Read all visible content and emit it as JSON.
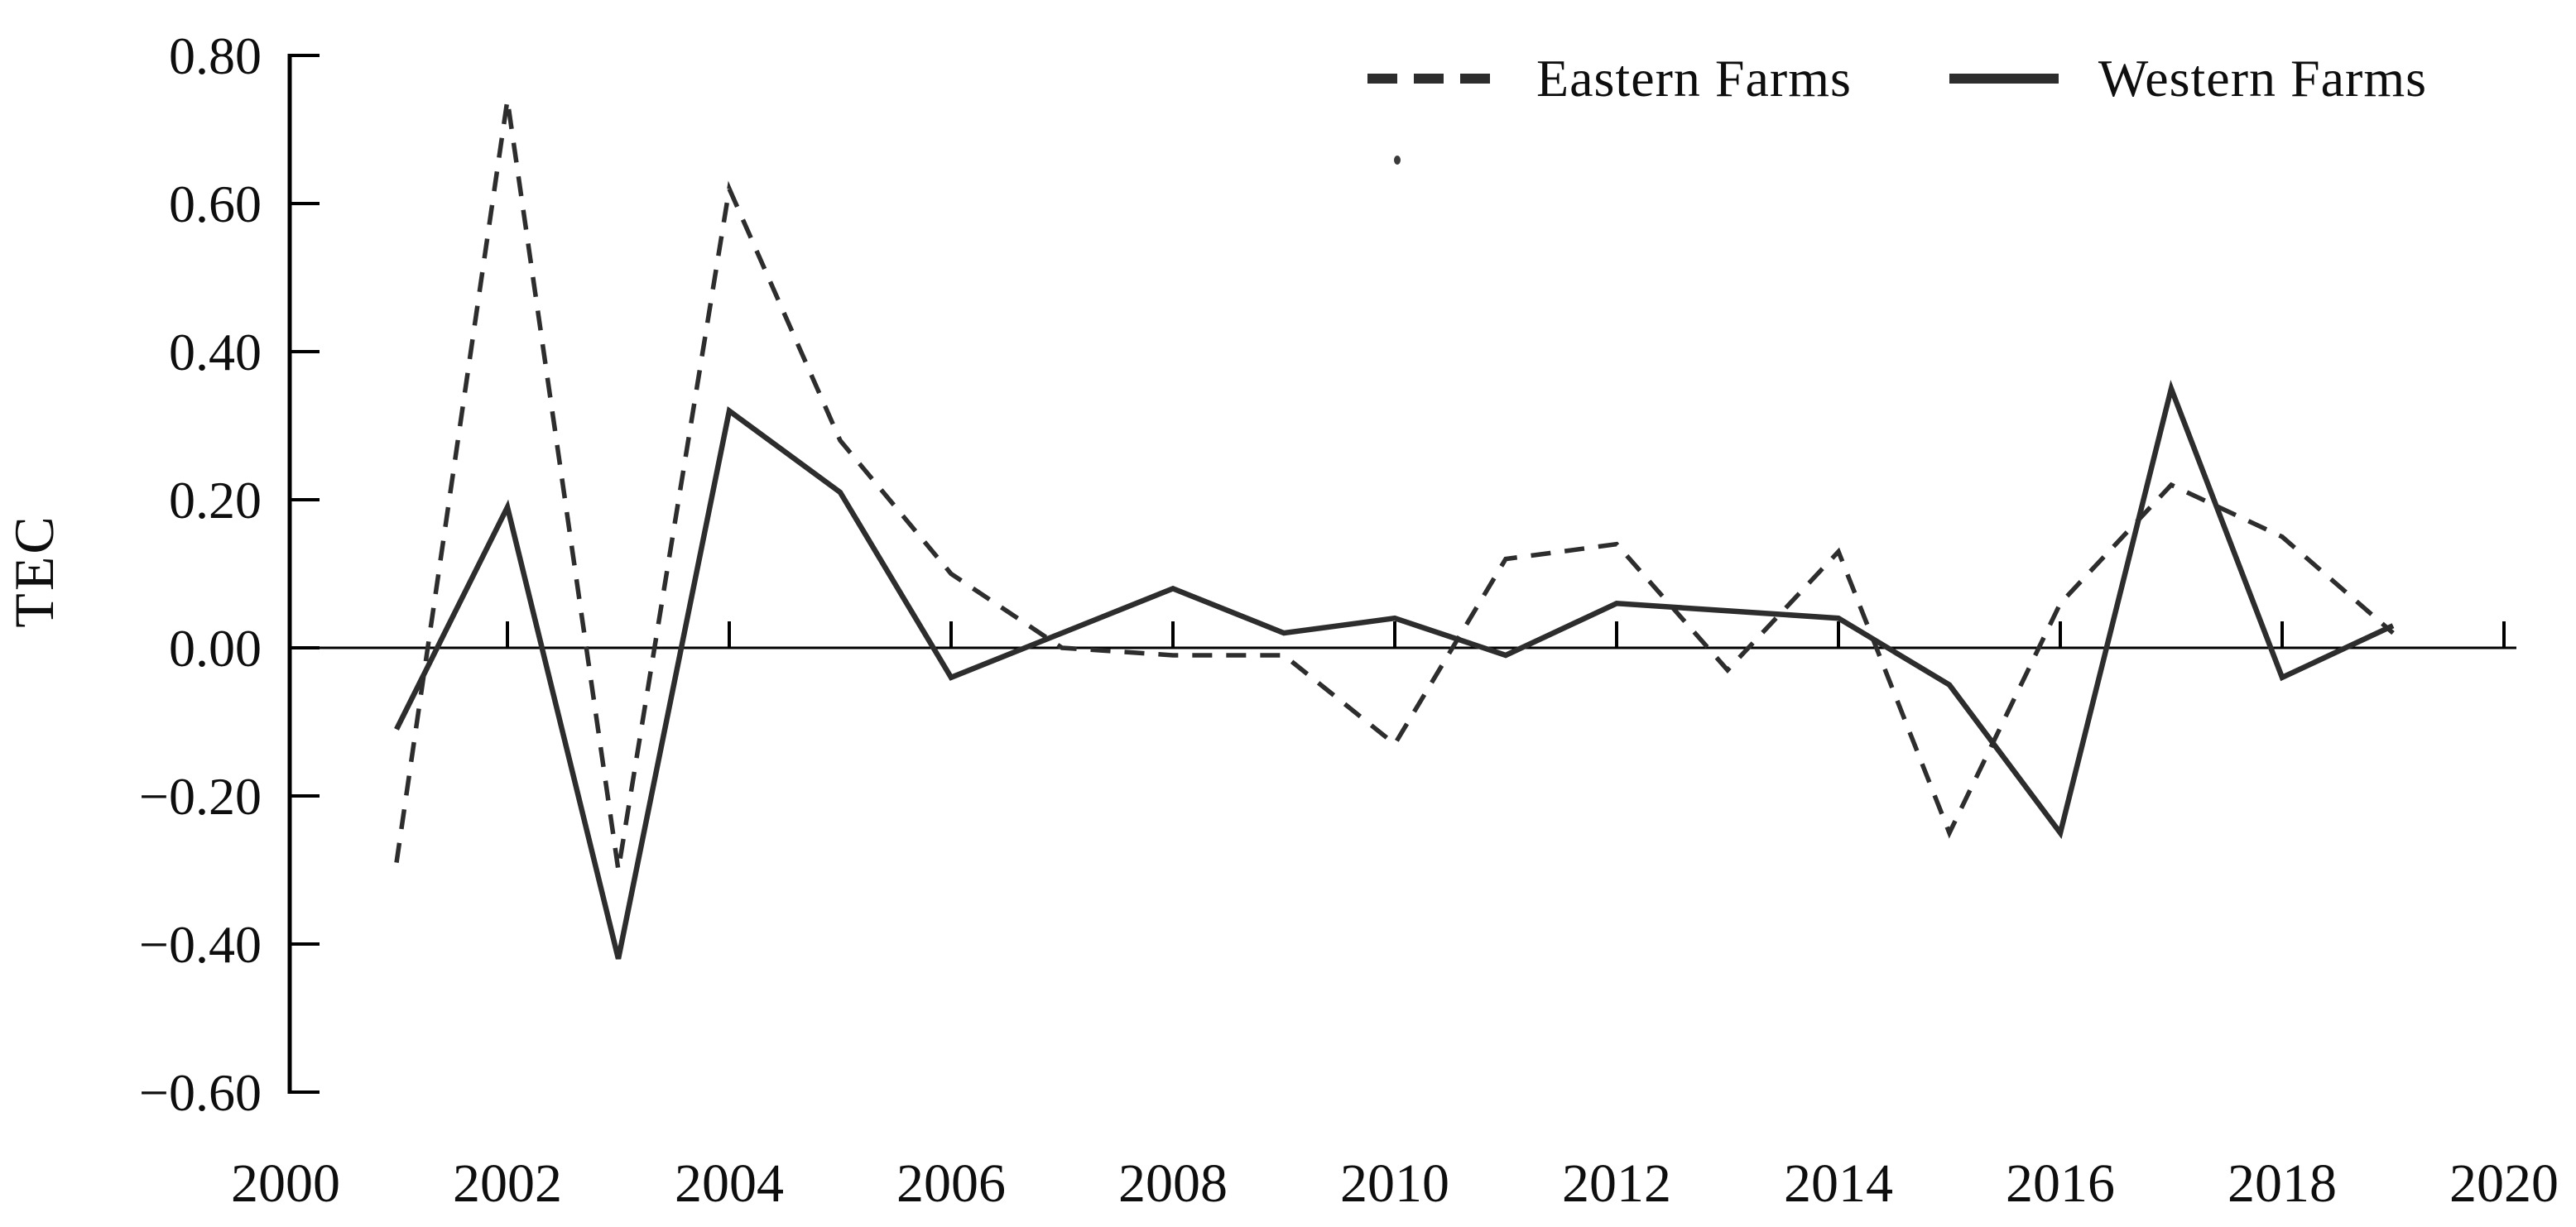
{
  "chart_data": {
    "type": "line",
    "title": "",
    "xlabel": "",
    "ylabel": "TEC",
    "x": [
      2001,
      2002,
      2003,
      2004,
      2005,
      2006,
      2007,
      2008,
      2009,
      2010,
      2011,
      2012,
      2013,
      2014,
      2015,
      2016,
      2017,
      2018,
      2019
    ],
    "series": [
      {
        "name": "Eastern Farms",
        "line_style": "dashed",
        "values": [
          -0.29,
          0.74,
          -0.3,
          0.62,
          0.28,
          0.1,
          0.0,
          -0.01,
          -0.01,
          -0.13,
          0.12,
          0.14,
          -0.03,
          0.13,
          -0.25,
          0.06,
          0.22,
          0.15,
          0.02
        ]
      },
      {
        "name": "Western Farms",
        "line_style": "solid",
        "values": [
          -0.11,
          0.19,
          -0.42,
          0.32,
          0.21,
          -0.04,
          0.02,
          0.08,
          0.02,
          0.04,
          -0.01,
          0.06,
          0.05,
          0.04,
          -0.05,
          -0.25,
          0.35,
          -0.04,
          0.03
        ]
      }
    ],
    "xlim": [
      2000,
      2020
    ],
    "ylim": [
      -0.6,
      0.8
    ],
    "x_tick_labels": [
      "2000",
      "2002",
      "2004",
      "2006",
      "2008",
      "2010",
      "2012",
      "2014",
      "2016",
      "2018",
      "2020"
    ],
    "y_tick_labels": [
      "0.80",
      "0.60",
      "0.40",
      "0.20",
      "0.00",
      "−0.20",
      "−0.40",
      "−0.60"
    ],
    "y_tick_values": [
      0.8,
      0.6,
      0.4,
      0.2,
      0.0,
      -0.2,
      -0.4,
      -0.6
    ],
    "grid": false,
    "legend_position": "top-right",
    "line_color": "#2d2d2d",
    "axis_color": "#000000"
  }
}
